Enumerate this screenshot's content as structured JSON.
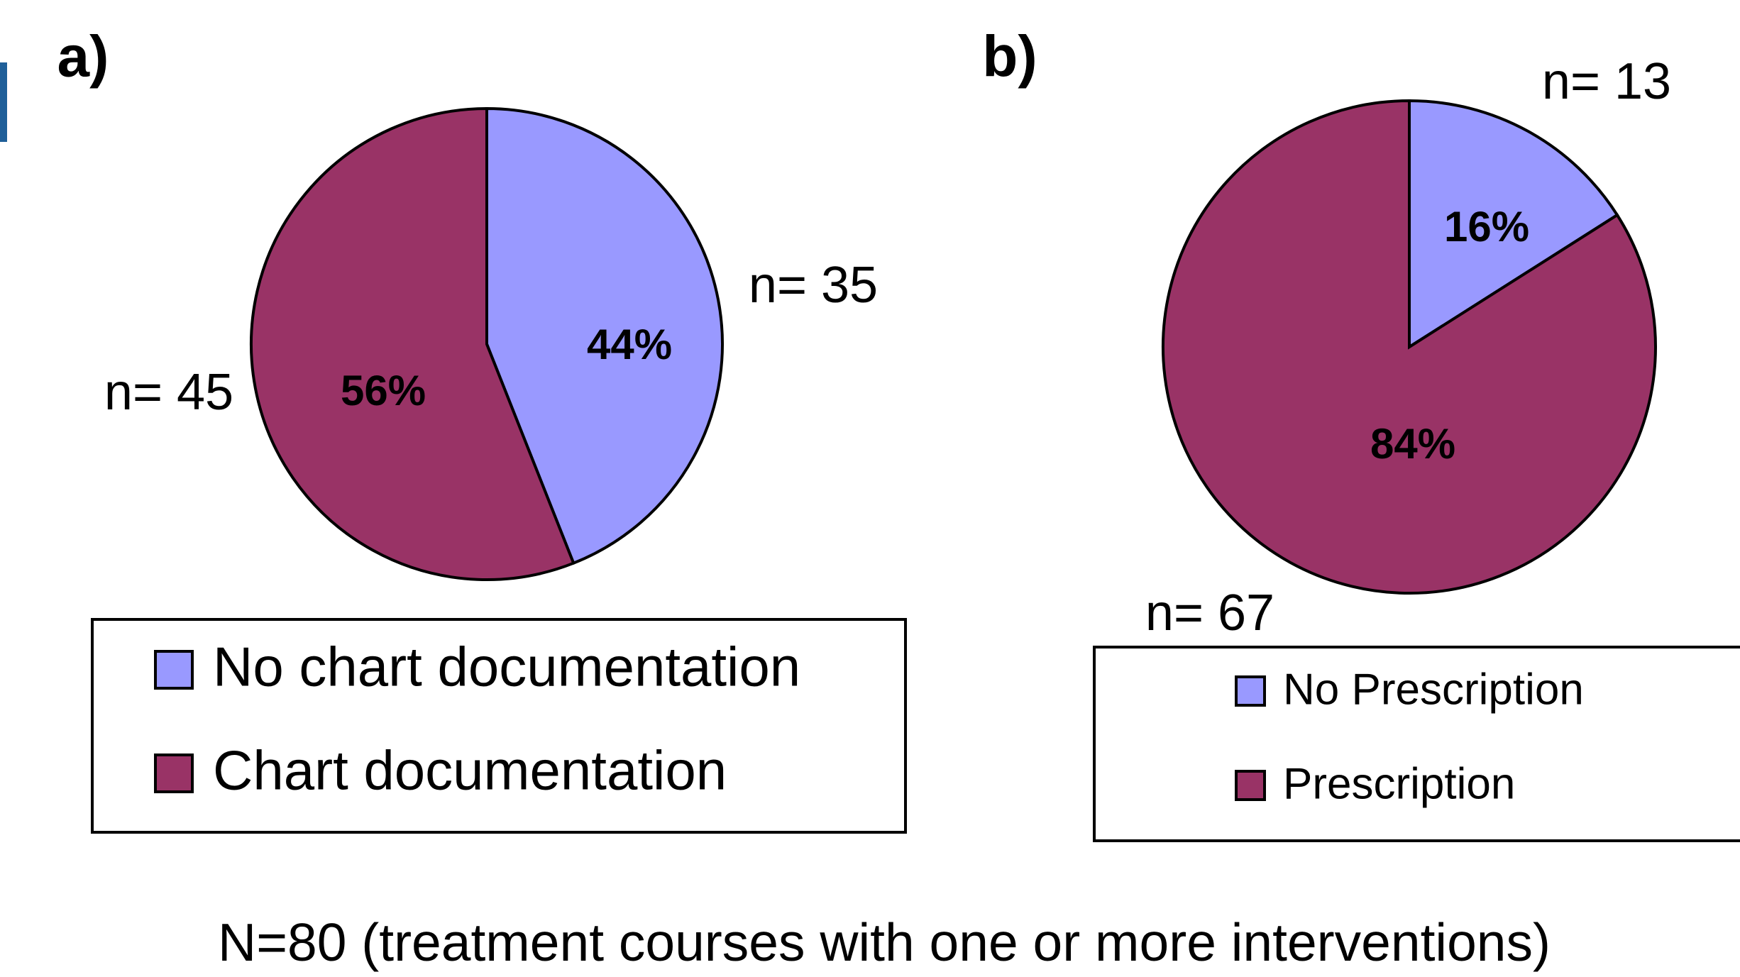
{
  "chart_data": [
    {
      "type": "pie",
      "panel_label": "a)",
      "categories": [
        "No chart documentation",
        "Chart documentation"
      ],
      "values": [
        44,
        56
      ],
      "value_labels": [
        "44%",
        "56%"
      ],
      "annotations": [
        "n= 35",
        "n= 45"
      ],
      "colors": [
        "#9999ff",
        "#993366"
      ],
      "legend": true
    },
    {
      "type": "pie",
      "panel_label": "b)",
      "categories": [
        "No Prescription",
        "Prescription"
      ],
      "values": [
        16,
        84
      ],
      "value_labels": [
        "16%",
        "84%"
      ],
      "annotations": [
        "n= 13",
        "n= 67"
      ],
      "colors": [
        "#9999ff",
        "#993366"
      ],
      "legend": true
    }
  ],
  "caption": "N=80 (treatment courses with one or more interventions)"
}
